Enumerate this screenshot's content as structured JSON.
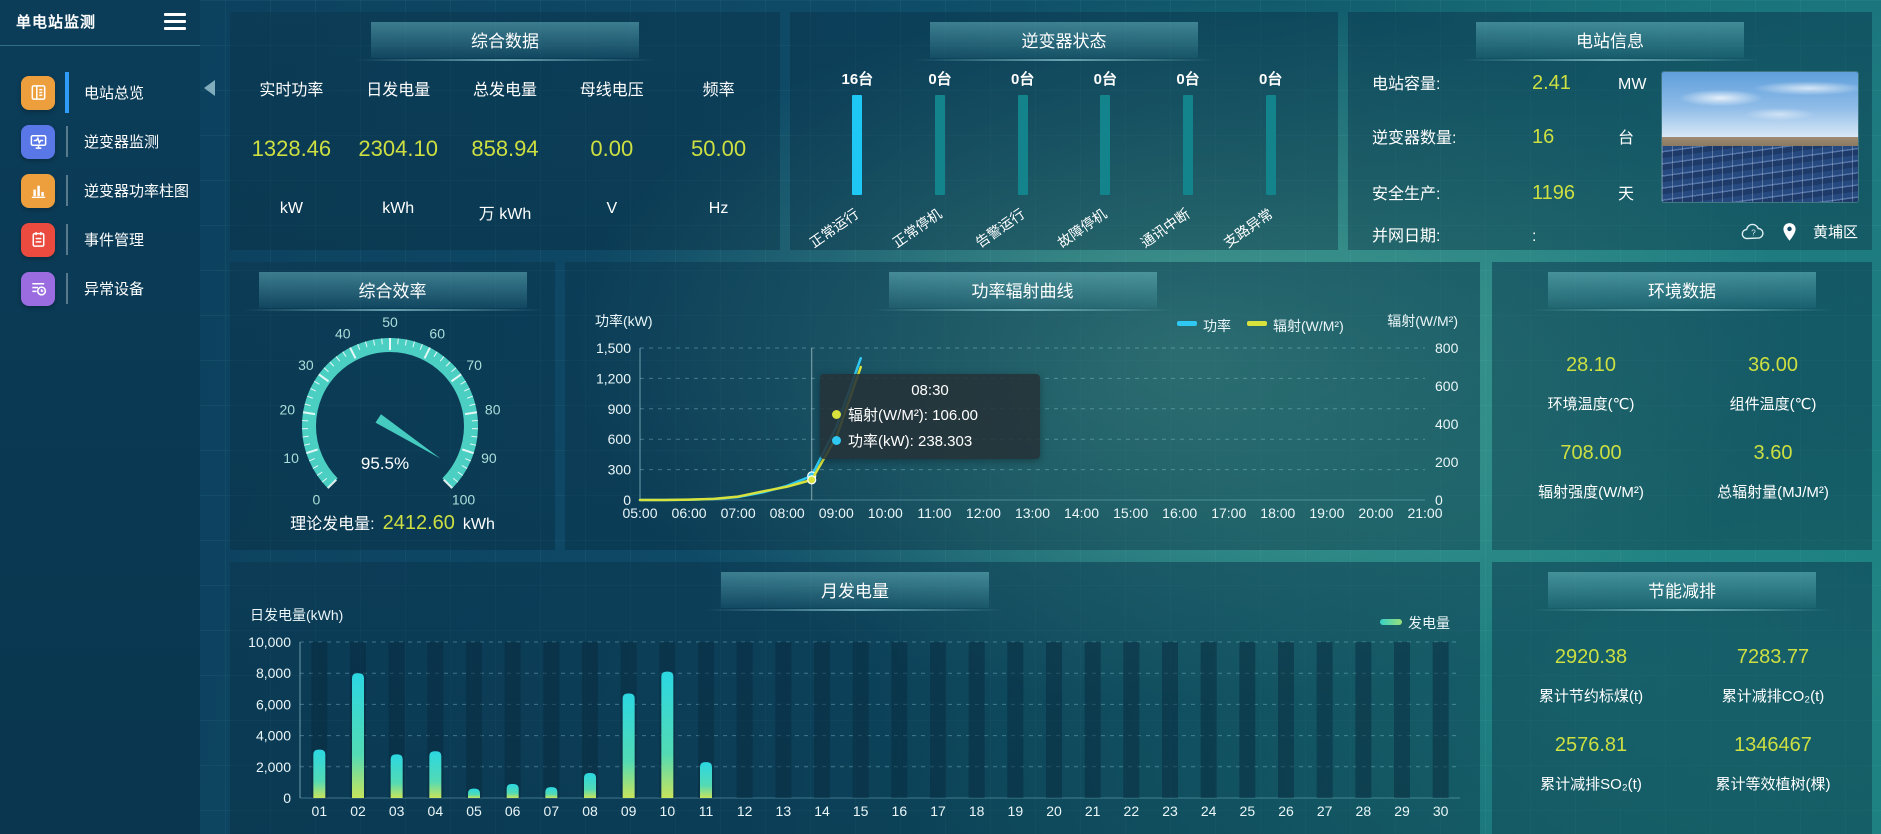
{
  "app": {
    "title": "单电站监测"
  },
  "colors": {
    "accent_value": "#cddf41",
    "menu_active_accent": "#2e9df7",
    "inverter_active": "#1fc7f4",
    "inverter_idle": "#13838c",
    "power_line": "#2fc8f2",
    "radiation_line": "#d7e23c",
    "gauge_ring": "#4ccfc3"
  },
  "sidebar": {
    "items": [
      {
        "label": "电站总览",
        "icon": "station-overview-icon",
        "icon_color": "#ed9f3d",
        "active": true
      },
      {
        "label": "逆变器监测",
        "icon": "inverter-monitor-icon",
        "icon_color": "#5a77e8",
        "active": false
      },
      {
        "label": "逆变器功率柱图",
        "icon": "inverter-power-bars-icon",
        "icon_color": "#ed9f3d",
        "active": false
      },
      {
        "label": "事件管理",
        "icon": "event-management-icon",
        "icon_color": "#ea4b3e",
        "active": false
      },
      {
        "label": "异常设备",
        "icon": "abnormal-device-icon",
        "icon_color": "#9a6ce0",
        "active": false
      }
    ]
  },
  "summary": {
    "title": "综合数据",
    "metrics": [
      {
        "label": "实时功率",
        "value": "1328.46",
        "unit": "kW"
      },
      {
        "label": "日发电量",
        "value": "2304.10",
        "unit": "kWh"
      },
      {
        "label": "总发电量",
        "value": "858.94",
        "unit": "万 kWh"
      },
      {
        "label": "母线电压",
        "value": "0.00",
        "unit": "V"
      },
      {
        "label": "频率",
        "value": "50.00",
        "unit": "Hz"
      }
    ]
  },
  "inverter_status": {
    "title": "逆变器状态",
    "bars": [
      {
        "count": "16台",
        "label": "正常运行",
        "active": true
      },
      {
        "count": "0台",
        "label": "正常停机",
        "active": false
      },
      {
        "count": "0台",
        "label": "告警运行",
        "active": false
      },
      {
        "count": "0台",
        "label": "故障停机",
        "active": false
      },
      {
        "count": "0台",
        "label": "通讯中断",
        "active": false
      },
      {
        "count": "0台",
        "label": "支路异常",
        "active": false
      }
    ]
  },
  "station_info": {
    "title": "电站信息",
    "rows": [
      {
        "label": "电站容量:",
        "value": "2.41",
        "unit": "MW"
      },
      {
        "label": "逆变器数量:",
        "value": "16",
        "unit": "台"
      },
      {
        "label": "安全生产:",
        "value": "1196",
        "unit": "天"
      },
      {
        "label": "并网日期:",
        "value": ":",
        "unit": ""
      }
    ],
    "location": "黄埔区"
  },
  "efficiency": {
    "title": "综合效率",
    "value_text": "95.5%",
    "tick_labels": [
      "0",
      "10",
      "20",
      "30",
      "40",
      "50",
      "60",
      "70",
      "80",
      "90",
      "100"
    ],
    "theory_label": "理论发电量:",
    "theory_value": "2412.60",
    "theory_unit": "kWh"
  },
  "curve": {
    "title": "功率辐射曲线",
    "tooltip": {
      "time": "08:30",
      "rows": [
        {
          "dot": "#d7e23c",
          "text": "辐射(W/M²): 106.00"
        },
        {
          "dot": "#2fc8f2",
          "text": "功率(kW): 238.303"
        }
      ]
    }
  },
  "environment": {
    "title": "环境数据",
    "cells": [
      {
        "value": "28.10",
        "label": "环境温度(℃)"
      },
      {
        "value": "36.00",
        "label": "组件温度(℃)"
      },
      {
        "value": "708.00",
        "label": "辐射强度(W/M²)"
      },
      {
        "value": "3.60",
        "label": "总辐射量(MJ/M²)"
      }
    ]
  },
  "monthly": {
    "title": "月发电量"
  },
  "energy_saving": {
    "title": "节能减排",
    "cells": [
      {
        "value": "2920.38",
        "label": "累计节约标煤(t)"
      },
      {
        "value": "7283.77",
        "label": "累计减排CO₂(t)"
      },
      {
        "value": "2576.81",
        "label": "累计减排SO₂(t)"
      },
      {
        "value": "1346467",
        "label": "累计等效植树(棵)"
      }
    ]
  },
  "chart_data": [
    {
      "id": "inverter-status",
      "type": "bar",
      "title": "逆变器状态",
      "categories": [
        "正常运行",
        "正常停机",
        "告警运行",
        "故障停机",
        "通讯中断",
        "支路异常"
      ],
      "values": [
        16,
        0,
        0,
        0,
        0,
        0
      ],
      "unit": "台"
    },
    {
      "id": "efficiency-gauge",
      "type": "gauge",
      "title": "综合效率",
      "value": 95.5,
      "min": 0,
      "max": 100,
      "unit": "%"
    },
    {
      "id": "power-radiation",
      "type": "line",
      "title": "功率辐射曲线",
      "x_axis_labels": [
        "05:00",
        "06:00",
        "07:00",
        "08:00",
        "09:00",
        "10:00",
        "11:00",
        "12:00",
        "13:00",
        "14:00",
        "15:00",
        "16:00",
        "17:00",
        "18:00",
        "19:00",
        "20:00",
        "21:00"
      ],
      "x_range_hours": [
        5,
        21
      ],
      "y_left": {
        "title": "功率(kW)",
        "min": 0,
        "max": 1500,
        "ticks": [
          "1,500",
          "1,200",
          "900",
          "600",
          "300",
          "0"
        ]
      },
      "y_right": {
        "title": "辐射(W/M²)",
        "min": 0,
        "max": 800,
        "ticks": [
          "800",
          "600",
          "400",
          "200",
          "0"
        ]
      },
      "legend": [
        "功率",
        "辐射(W/M²)"
      ],
      "crosshair_time": "08:30",
      "series": [
        {
          "name": "功率",
          "color": "#2fc8f2",
          "axis": "left",
          "points": [
            [
              "05:00",
              0
            ],
            [
              "05:30",
              0
            ],
            [
              "06:00",
              3
            ],
            [
              "06:30",
              10
            ],
            [
              "07:00",
              30
            ],
            [
              "07:30",
              75
            ],
            [
              "08:00",
              140
            ],
            [
              "08:30",
              238.303
            ],
            [
              "09:00",
              720
            ],
            [
              "09:30",
              1400
            ]
          ]
        },
        {
          "name": "辐射(W/M²)",
          "color": "#d7e23c",
          "axis": "right",
          "points": [
            [
              "05:00",
              0
            ],
            [
              "05:30",
              0
            ],
            [
              "06:00",
              2
            ],
            [
              "06:30",
              6
            ],
            [
              "07:00",
              18
            ],
            [
              "07:30",
              45
            ],
            [
              "08:00",
              70
            ],
            [
              "08:30",
              106
            ],
            [
              "09:00",
              330
            ],
            [
              "09:30",
              700
            ]
          ]
        }
      ]
    },
    {
      "id": "monthly-energy",
      "type": "bar",
      "title": "月发电量",
      "y_title": "日发电量(kWh)",
      "legend": "发电量",
      "ylim": [
        0,
        10000
      ],
      "y_ticks": [
        "10,000",
        "8,000",
        "6,000",
        "4,000",
        "2,000",
        "0"
      ],
      "categories": [
        "01",
        "02",
        "03",
        "04",
        "05",
        "06",
        "07",
        "08",
        "09",
        "10",
        "11",
        "12",
        "13",
        "14",
        "15",
        "16",
        "17",
        "18",
        "19",
        "20",
        "21",
        "22",
        "23",
        "24",
        "25",
        "26",
        "27",
        "28",
        "29",
        "30"
      ],
      "values": [
        3100,
        8000,
        2800,
        3000,
        600,
        900,
        700,
        1600,
        6700,
        8100,
        2300,
        0,
        0,
        0,
        0,
        0,
        0,
        0,
        0,
        0,
        0,
        0,
        0,
        0,
        0,
        0,
        0,
        0,
        0,
        0
      ]
    }
  ]
}
